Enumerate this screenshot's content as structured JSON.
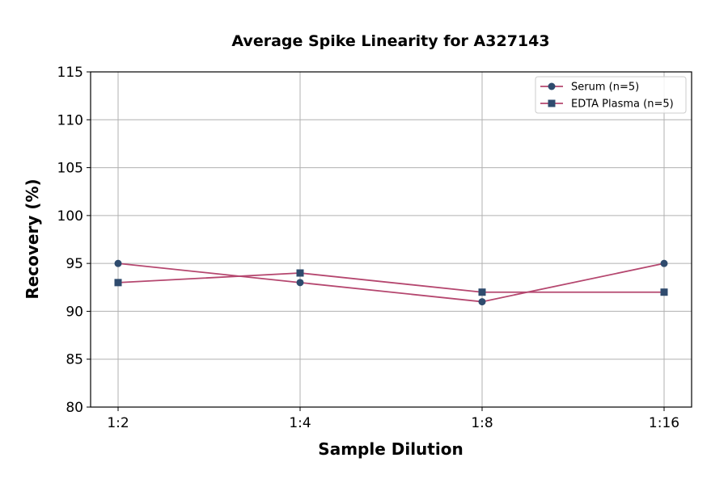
{
  "chart_data": {
    "type": "line",
    "title": "Average Spike Linearity for A327143",
    "xlabel": "Sample Dilution",
    "ylabel": "Recovery (%)",
    "categories": [
      "1:2",
      "1:4",
      "1:8",
      "1:16"
    ],
    "ylim": [
      80,
      115
    ],
    "yticks": [
      80,
      85,
      90,
      95,
      100,
      105,
      110,
      115
    ],
    "grid": true,
    "legend_placement": "top-right",
    "series": [
      {
        "name": "Serum (n=5)",
        "values": [
          95,
          93,
          91,
          95
        ],
        "marker": "circle",
        "line_color": "#b5476f",
        "marker_color": "#2f4b6e"
      },
      {
        "name": "EDTA Plasma (n=5)",
        "values": [
          93,
          94,
          92,
          92
        ],
        "marker": "square",
        "line_color": "#b5476f",
        "marker_color": "#2f4b6e"
      }
    ]
  }
}
